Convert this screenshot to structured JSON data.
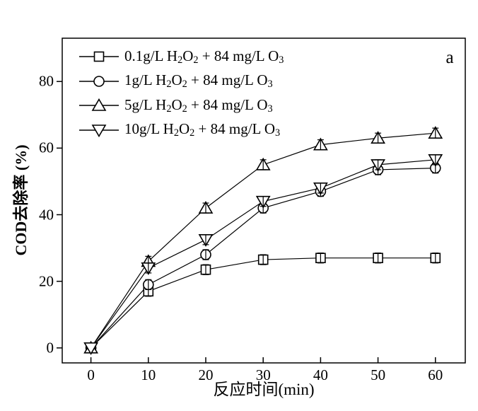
{
  "chart_data": {
    "type": "line",
    "title": "",
    "panel_label": "a",
    "xlabel": "反应时间(min)",
    "ylabel": "COD去除率 (%)",
    "xlim": [
      -5,
      65.2
    ],
    "ylim": [
      -4.5,
      93
    ],
    "x_ticks": [
      0,
      10,
      20,
      30,
      40,
      50,
      60
    ],
    "y_ticks": [
      0,
      20,
      40,
      60,
      80
    ],
    "grid": false,
    "legend_position": "upper-left-inside",
    "x": [
      0,
      10,
      20,
      30,
      40,
      50,
      60
    ],
    "series": [
      {
        "name": "0.1g/L H2O2 + 84 mg/L O3",
        "marker": "square",
        "values": [
          0,
          17,
          23.5,
          26.5,
          27,
          27,
          27
        ],
        "error": 1.5,
        "label_parts": [
          {
            "t": "0.1g/L H"
          },
          {
            "t": "2",
            "sub": true
          },
          {
            "t": "O"
          },
          {
            "t": "2",
            "sub": true
          },
          {
            "t": " + 84 mg/L O"
          },
          {
            "t": "3",
            "sub": true
          }
        ]
      },
      {
        "name": "1g/L H2O2 + 84 mg/L O3",
        "marker": "circle",
        "values": [
          0,
          19,
          28,
          42,
          47,
          53.5,
          54
        ],
        "error": 1.5,
        "label_parts": [
          {
            "t": "1g/L H"
          },
          {
            "t": "2",
            "sub": true
          },
          {
            "t": "O"
          },
          {
            "t": "2",
            "sub": true
          },
          {
            "t": " + 84 mg/L O"
          },
          {
            "t": "3",
            "sub": true
          }
        ]
      },
      {
        "name": "5g/L H2O2 + 84 mg/L O3",
        "marker": "triangle-up",
        "values": [
          0,
          26,
          42,
          55,
          61,
          63,
          64.5
        ],
        "error": 1.5,
        "label_parts": [
          {
            "t": "5g/L H"
          },
          {
            "t": "2",
            "sub": true
          },
          {
            "t": "O"
          },
          {
            "t": "2",
            "sub": true
          },
          {
            "t": " + 84 mg/L O"
          },
          {
            "t": "3",
            "sub": true
          }
        ]
      },
      {
        "name": "10g/L H2O2 + 84 mg/L O3",
        "marker": "triangle-down",
        "values": [
          0,
          24,
          32.5,
          44,
          48,
          55,
          56.5
        ],
        "error": 1.5,
        "label_parts": [
          {
            "t": "10g/L H"
          },
          {
            "t": "2",
            "sub": true
          },
          {
            "t": "O"
          },
          {
            "t": "2",
            "sub": true
          },
          {
            "t": " + 84 mg/L O"
          },
          {
            "t": "3",
            "sub": true
          }
        ]
      }
    ],
    "colors": {
      "line": "#000000",
      "marker_fill": "#ffffff",
      "background": "#ffffff"
    }
  }
}
